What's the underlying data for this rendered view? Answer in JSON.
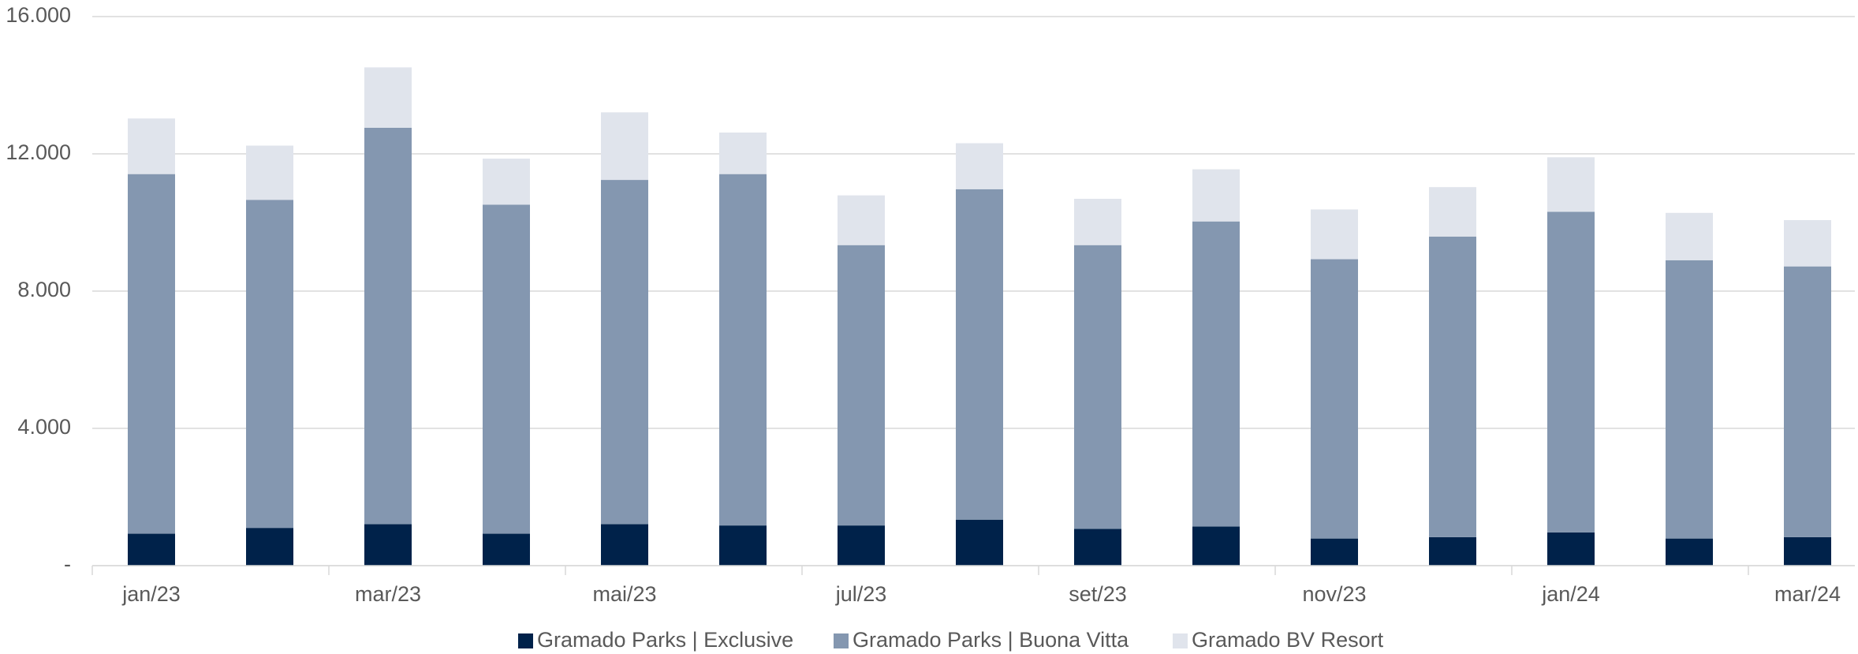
{
  "chart_data": {
    "type": "stacked_bar",
    "categories": [
      "jan/23",
      null,
      "mar/23",
      null,
      "mai/23",
      null,
      "jul/23",
      null,
      "set/23",
      null,
      "nov/23",
      null,
      "jan/24",
      null,
      "mar/24"
    ],
    "series": [
      {
        "name": "Gramado Parks | Exclusive",
        "color": "#00224a",
        "values": [
          930,
          1100,
          1210,
          930,
          1210,
          1170,
          1170,
          1340,
          1070,
          1140,
          790,
          830,
          970,
          790,
          830
        ]
      },
      {
        "name": "Gramado Parks | Buona Vitta",
        "color": "#8497b0",
        "values": [
          10480,
          9560,
          11550,
          9590,
          10030,
          10240,
          8170,
          9630,
          8270,
          8890,
          8140,
          8760,
          9340,
          8110,
          7890
        ]
      },
      {
        "name": "Gramado BV Resort",
        "color": "#e0e4ec",
        "values": [
          1620,
          1580,
          1760,
          1340,
          1970,
          1210,
          1450,
          1340,
          1350,
          1520,
          1450,
          1440,
          1590,
          1380,
          1350
        ]
      }
    ],
    "ylim": [
      0,
      16000
    ],
    "yticks": [
      {
        "value": 0,
        "label": "-"
      },
      {
        "value": 4000,
        "label": "4.000"
      },
      {
        "value": 8000,
        "label": "8.000"
      },
      {
        "value": 12000,
        "label": "12.000"
      },
      {
        "value": 16000,
        "label": "16.000"
      }
    ],
    "grid": true,
    "legend": "bottom"
  }
}
